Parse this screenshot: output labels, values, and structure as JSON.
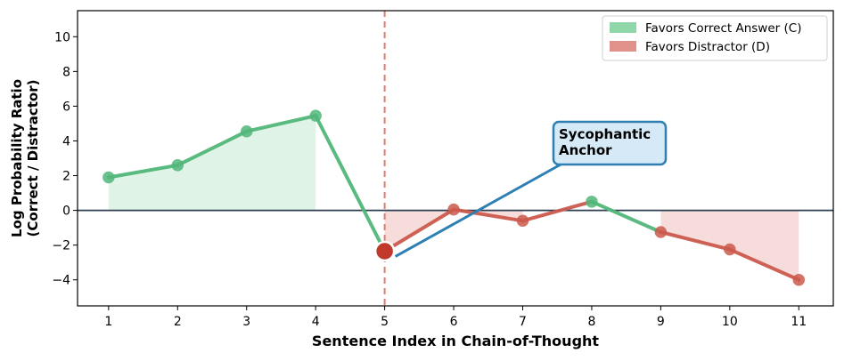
{
  "chart_data": {
    "type": "line",
    "title": "",
    "xlabel": "Sentence Index in Chain-of-Thought",
    "ylabel_lines": [
      "Log Probability Ratio",
      "(Correct / Distractor)"
    ],
    "x": [
      1,
      2,
      3,
      4,
      5,
      6,
      7,
      8,
      9,
      10,
      11
    ],
    "y": [
      1.9,
      2.6,
      4.55,
      5.45,
      -2.35,
      0.05,
      -0.6,
      0.5,
      -1.25,
      -2.25,
      -4.0
    ],
    "xticks": [
      "1",
      "2",
      "3",
      "4",
      "5",
      "6",
      "7",
      "8",
      "9",
      "10",
      "11"
    ],
    "yticks": [
      "−4",
      "−2",
      "0",
      "2",
      "4",
      "6",
      "8",
      "10"
    ],
    "ytick_values": [
      -4,
      -2,
      0,
      2,
      4,
      6,
      8,
      10
    ],
    "xlim": [
      0.55,
      11.5
    ],
    "ylim": [
      -5.5,
      11.5
    ],
    "grid": false,
    "legend_position": "top-right",
    "legend": [
      {
        "label": "Favors Correct Answer (C)",
        "color": "#8fd6a8"
      },
      {
        "label": "Favors Distractor (D)",
        "color": "#e0928a"
      }
    ],
    "anchor": {
      "x": 5,
      "y": -2.35,
      "label_lines": [
        "Sycophantic",
        "Anchor"
      ]
    },
    "vline_x": 5,
    "colors": {
      "correct_line": "#52b77a",
      "distractor_line": "#cc5a4d",
      "anchor_point": "#c0392b",
      "correct_fill": "#dff3e6",
      "distractor_fill": "#f6dcda",
      "annotation_border": "#2e7fb3",
      "annotation_fill": "#d6e9f7",
      "zero_line": "#2c3e50",
      "vline": "#e07b70"
    }
  }
}
